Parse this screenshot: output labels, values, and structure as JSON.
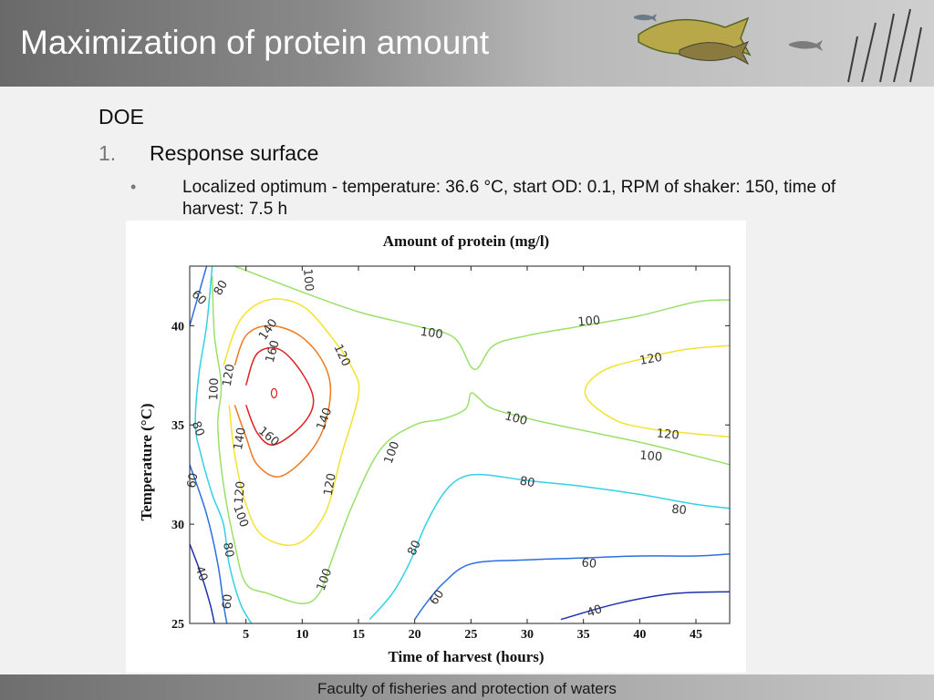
{
  "slide": {
    "title": "Maximization of protein amount",
    "heading": "DOE",
    "item_number": "1.",
    "item_text": "Response surface",
    "bullet": "•",
    "bullet_text": "Localized optimum - temperature:  36.6 °C, start OD: 0.1, RPM of shaker: 150, time of harvest: 7.5 h",
    "footer": "Faculty of fisheries and protection of waters"
  },
  "chart_data": {
    "type": "contour",
    "title": "Amount of protein (mg/l)",
    "xlabel": "Time of harvest (hours)",
    "ylabel": "Temperature (°C)",
    "xlim": [
      0,
      48
    ],
    "ylim": [
      25,
      43
    ],
    "x_ticks": [
      5,
      10,
      15,
      20,
      25,
      30,
      35,
      40,
      45
    ],
    "y_ticks": [
      25,
      30,
      35,
      40
    ],
    "grid": false,
    "optimum_point": {
      "x": 7.5,
      "y": 36.6
    },
    "contours": [
      {
        "level": 160,
        "color": "#e02020",
        "points": [
          [
            5,
            37
          ],
          [
            6,
            38.6
          ],
          [
            8,
            38.8
          ],
          [
            10,
            37.6
          ],
          [
            11,
            36.2
          ],
          [
            10,
            35
          ],
          [
            7.5,
            34
          ],
          [
            6,
            34.6
          ],
          [
            5,
            36
          ]
        ]
      },
      {
        "level": 140,
        "color": "#f07820",
        "points": [
          [
            4,
            38
          ],
          [
            5,
            39.5
          ],
          [
            7,
            40
          ],
          [
            9.5,
            39.6
          ],
          [
            11.5,
            38.5
          ],
          [
            12.5,
            37
          ],
          [
            12,
            35
          ],
          [
            10.5,
            33.5
          ],
          [
            8,
            32.4
          ],
          [
            6,
            33
          ],
          [
            5,
            34.4
          ],
          [
            4,
            36
          ]
        ]
      },
      {
        "level": 120,
        "color": "#f2e32c",
        "points": [
          [
            3,
            38
          ],
          [
            4.5,
            40.3
          ],
          [
            7,
            41.3
          ],
          [
            10,
            41
          ],
          [
            12.5,
            39.5
          ],
          [
            14.5,
            37.8
          ],
          [
            15,
            36.5
          ],
          [
            13.5,
            33.5
          ],
          [
            12,
            30.5
          ],
          [
            9.5,
            29
          ],
          [
            6.5,
            29.4
          ],
          [
            5,
            31
          ],
          [
            4,
            33.5
          ],
          [
            3.5,
            36
          ]
        ]
      },
      {
        "level": 120,
        "color": "#f2e32c",
        "points": [
          [
            48,
            39
          ],
          [
            44,
            38.8
          ],
          [
            40,
            38.3
          ],
          [
            37,
            37.8
          ],
          [
            35.3,
            37
          ],
          [
            35.5,
            36.2
          ],
          [
            38,
            35.2
          ],
          [
            41,
            34.8
          ],
          [
            44,
            34.6
          ],
          [
            48,
            34.4
          ]
        ]
      },
      {
        "level": 100,
        "color": "#9be06a",
        "points": [
          [
            2,
            42.5
          ],
          [
            2.2,
            39.5
          ],
          [
            2.8,
            37
          ],
          [
            2.5,
            35
          ],
          [
            3,
            32
          ],
          [
            4,
            29
          ],
          [
            5,
            27
          ],
          [
            7,
            26.5
          ],
          [
            10,
            26
          ],
          [
            11.5,
            26.5
          ],
          [
            12.5,
            28
          ],
          [
            14.5,
            31
          ],
          [
            17,
            33.8
          ],
          [
            20,
            35
          ],
          [
            22.5,
            35.3
          ],
          [
            24.5,
            35.8
          ],
          [
            25,
            36.6
          ],
          [
            25.8,
            36.3
          ],
          [
            27,
            35.8
          ],
          [
            31,
            35.2
          ],
          [
            36,
            34.6
          ],
          [
            41,
            34
          ],
          [
            48,
            33
          ]
        ]
      },
      {
        "level": 100,
        "color": "#9be06a",
        "points": [
          [
            4,
            43
          ],
          [
            10,
            41.7
          ],
          [
            15,
            40.7
          ],
          [
            20,
            40
          ],
          [
            23.5,
            39.4
          ],
          [
            25.3,
            37.8
          ],
          [
            27,
            39
          ],
          [
            30,
            39.5
          ],
          [
            35,
            40
          ],
          [
            40,
            40.5
          ],
          [
            45,
            41.2
          ],
          [
            48,
            41.3
          ]
        ]
      },
      {
        "level": 80,
        "color": "#33d1e6",
        "points": [
          [
            2,
            43
          ],
          [
            1.5,
            40
          ],
          [
            0.8,
            37.5
          ],
          [
            0.5,
            35
          ],
          [
            1,
            33.5
          ],
          [
            2,
            31.5
          ],
          [
            3,
            30
          ],
          [
            3.5,
            28
          ],
          [
            4.5,
            26
          ],
          [
            5.5,
            25
          ]
        ]
      },
      {
        "level": 80,
        "color": "#33d1e6",
        "points": [
          [
            16,
            25.2
          ],
          [
            18,
            26.5
          ],
          [
            19.5,
            28
          ],
          [
            21,
            30
          ],
          [
            22.5,
            31.5
          ],
          [
            24,
            32.3
          ],
          [
            26,
            32.5
          ],
          [
            30,
            32.2
          ],
          [
            35,
            31.9
          ],
          [
            40,
            31.5
          ],
          [
            45,
            31
          ],
          [
            48,
            30.8
          ]
        ]
      },
      {
        "level": 60,
        "color": "#2c6fe0",
        "points": [
          [
            1.5,
            43
          ],
          [
            0.5,
            41
          ],
          [
            0,
            40
          ]
        ]
      },
      {
        "level": 60,
        "color": "#2c6fe0",
        "points": [
          [
            0,
            33
          ],
          [
            1.5,
            30.5
          ],
          [
            2.5,
            28
          ],
          [
            3,
            26
          ],
          [
            3.3,
            25
          ]
        ]
      },
      {
        "level": 60,
        "color": "#2c6fe0",
        "points": [
          [
            20,
            25.2
          ],
          [
            21,
            26
          ],
          [
            22.5,
            27
          ],
          [
            25,
            28
          ],
          [
            30,
            28.2
          ],
          [
            35,
            28.3
          ],
          [
            40,
            28.4
          ],
          [
            45,
            28.4
          ],
          [
            48,
            28.5
          ]
        ]
      },
      {
        "level": 40,
        "color": "#2030b0",
        "points": [
          [
            0,
            29
          ],
          [
            1,
            27.5
          ],
          [
            1.8,
            26
          ],
          [
            2.2,
            25
          ]
        ]
      },
      {
        "level": 40,
        "color": "#2030b0",
        "points": [
          [
            33,
            25.2
          ],
          [
            38,
            26
          ],
          [
            43,
            26.5
          ],
          [
            48,
            26.6
          ]
        ]
      }
    ],
    "contour_labels": [
      {
        "text": "160",
        "x": 7.4,
        "y": 38.7,
        "rotate": -75
      },
      {
        "text": "160",
        "x": 7,
        "y": 34.4,
        "rotate": 40
      },
      {
        "text": "140",
        "x": 7,
        "y": 39.8,
        "rotate": -55
      },
      {
        "text": "140",
        "x": 4.5,
        "y": 34.3,
        "rotate": -80
      },
      {
        "text": "140",
        "x": 12,
        "y": 35.3,
        "rotate": -70
      },
      {
        "text": "120",
        "x": 3.5,
        "y": 37.5,
        "rotate": -80
      },
      {
        "text": "120",
        "x": 13.5,
        "y": 38.5,
        "rotate": 65
      },
      {
        "text": "120",
        "x": 12.5,
        "y": 32,
        "rotate": -80
      },
      {
        "text": "120",
        "x": 4.5,
        "y": 31.6,
        "rotate": -85
      },
      {
        "text": "120",
        "x": 41,
        "y": 38.3,
        "rotate": -10
      },
      {
        "text": "120",
        "x": 42.5,
        "y": 34.5,
        "rotate": 5
      },
      {
        "text": "100",
        "x": 10.5,
        "y": 42.3,
        "rotate": 85
      },
      {
        "text": "100",
        "x": 2.2,
        "y": 36.8,
        "rotate": -88
      },
      {
        "text": "100",
        "x": 21.5,
        "y": 39.6,
        "rotate": 8
      },
      {
        "text": "100",
        "x": 35.5,
        "y": 40.2,
        "rotate": -5
      },
      {
        "text": "100",
        "x": 29,
        "y": 35.3,
        "rotate": 15
      },
      {
        "text": "100",
        "x": 18,
        "y": 33.6,
        "rotate": -70
      },
      {
        "text": "100",
        "x": 4.5,
        "y": 30.4,
        "rotate": 70
      },
      {
        "text": "100",
        "x": 12,
        "y": 27.2,
        "rotate": -70
      },
      {
        "text": "100",
        "x": 41,
        "y": 33.4,
        "rotate": 5
      },
      {
        "text": "80",
        "x": 2.8,
        "y": 41.9,
        "rotate": -60
      },
      {
        "text": "80",
        "x": 0.7,
        "y": 34.8,
        "rotate": 70
      },
      {
        "text": "80",
        "x": 3.4,
        "y": 28.7,
        "rotate": 80
      },
      {
        "text": "80",
        "x": 20,
        "y": 28.8,
        "rotate": -65
      },
      {
        "text": "80",
        "x": 30,
        "y": 32.1,
        "rotate": 10
      },
      {
        "text": "80",
        "x": 43.5,
        "y": 30.7,
        "rotate": 5
      },
      {
        "text": "60",
        "x": 0.8,
        "y": 41.4,
        "rotate": 45
      },
      {
        "text": "60",
        "x": 0.3,
        "y": 32.2,
        "rotate": -80
      },
      {
        "text": "60",
        "x": 3.4,
        "y": 26.1,
        "rotate": -85
      },
      {
        "text": "60",
        "x": 22,
        "y": 26.3,
        "rotate": -55
      },
      {
        "text": "60",
        "x": 35.5,
        "y": 28,
        "rotate": 5
      },
      {
        "text": "40",
        "x": 1,
        "y": 27.5,
        "rotate": 70
      },
      {
        "text": "40",
        "x": 36,
        "y": 25.6,
        "rotate": -20
      }
    ]
  }
}
